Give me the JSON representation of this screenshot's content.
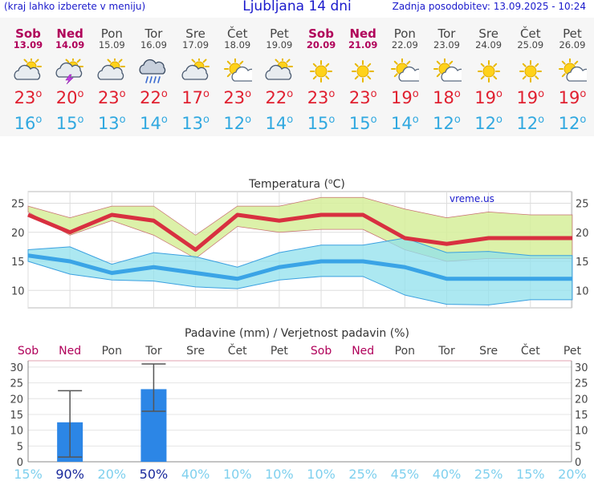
{
  "header": {
    "menu_note": "(kraj lahko izberete v meniju)",
    "title": "Ljubljana 14 dni",
    "updated": "Zadnja posodobitev: 13.09.2025 - 10:24"
  },
  "days": [
    {
      "name": "Sob",
      "date": "13.09",
      "weekend": true,
      "icon": "partly-cloudy-icon",
      "tmax": "23",
      "tmin": "16"
    },
    {
      "name": "Ned",
      "date": "14.09",
      "weekend": true,
      "icon": "thunderstorm-icon",
      "tmax": "20",
      "tmin": "15"
    },
    {
      "name": "Pon",
      "date": "15.09",
      "weekend": false,
      "icon": "partly-cloudy-icon",
      "tmax": "23",
      "tmin": "13"
    },
    {
      "name": "Tor",
      "date": "16.09",
      "weekend": false,
      "icon": "rain-cloud-icon",
      "tmax": "22",
      "tmin": "14"
    },
    {
      "name": "Sre",
      "date": "17.09",
      "weekend": false,
      "icon": "partly-cloudy-icon",
      "tmax": "17",
      "tmin": "13"
    },
    {
      "name": "Čet",
      "date": "18.09",
      "weekend": false,
      "icon": "mostly-sunny-icon",
      "tmax": "23",
      "tmin": "12"
    },
    {
      "name": "Pet",
      "date": "19.09",
      "weekend": false,
      "icon": "partly-cloudy-icon",
      "tmax": "22",
      "tmin": "14"
    },
    {
      "name": "Sob",
      "date": "20.09",
      "weekend": true,
      "icon": "sunny-icon",
      "tmax": "23",
      "tmin": "15"
    },
    {
      "name": "Ned",
      "date": "21.09",
      "weekend": true,
      "icon": "sunny-icon",
      "tmax": "23",
      "tmin": "15"
    },
    {
      "name": "Pon",
      "date": "22.09",
      "weekend": false,
      "icon": "mostly-sunny-icon",
      "tmax": "19",
      "tmin": "14"
    },
    {
      "name": "Tor",
      "date": "23.09",
      "weekend": false,
      "icon": "mostly-sunny-icon",
      "tmax": "18",
      "tmin": "12"
    },
    {
      "name": "Sre",
      "date": "24.09",
      "weekend": false,
      "icon": "sunny-icon",
      "tmax": "19",
      "tmin": "12"
    },
    {
      "name": "Čet",
      "date": "25.09",
      "weekend": false,
      "icon": "sunny-icon",
      "tmax": "19",
      "tmin": "12"
    },
    {
      "name": "Pet",
      "date": "26.09",
      "weekend": false,
      "icon": "mostly-sunny-icon",
      "tmax": "19",
      "tmin": "12"
    }
  ],
  "degree_symbol": "o",
  "colors": {
    "max": "#e02030",
    "min": "#30a8e0",
    "max_band": "#d6ee9a",
    "min_band": "#90e0ec",
    "bar": "#2c86e6",
    "prob_high": "#1a2a9c",
    "prob_low": "#7fd0ee",
    "title": "#1a1acc",
    "weekend": "#b0005a"
  },
  "chart_data": [
    {
      "type": "line",
      "title": "Temperatura (°C)",
      "title_parts": [
        "Temperatura (",
        "o",
        "C)"
      ],
      "watermark": "vreme.us",
      "categories": [
        "Sob",
        "Ned",
        "Pon",
        "Tor",
        "Sre",
        "Čet",
        "Pet",
        "Sob",
        "Ned",
        "Pon",
        "Tor",
        "Sre",
        "Čet",
        "Pet"
      ],
      "ylim": [
        7,
        27
      ],
      "yticks": [
        10,
        15,
        20,
        25
      ],
      "series": [
        {
          "name": "max",
          "values": [
            23,
            20,
            23,
            22,
            17,
            23,
            22,
            23,
            23,
            19,
            18,
            19,
            19,
            19
          ]
        },
        {
          "name": "min",
          "values": [
            16,
            15,
            13,
            14,
            13,
            12,
            14,
            15,
            15,
            14,
            12,
            12,
            12,
            12
          ]
        }
      ],
      "bands": [
        {
          "name": "max_range",
          "low": [
            23.5,
            19.5,
            22,
            19.5,
            15.5,
            21,
            20,
            20.5,
            20.5,
            17,
            15,
            15.5,
            15.5,
            15.5
          ],
          "high": [
            24.5,
            22.5,
            24.5,
            24.5,
            19.5,
            24.5,
            24.5,
            26,
            26,
            24,
            22.5,
            23.5,
            23,
            23
          ]
        },
        {
          "name": "min_range",
          "low": [
            15,
            12.8,
            11.8,
            11.6,
            10.6,
            10.3,
            11.8,
            12.4,
            12.4,
            9.2,
            7.6,
            7.5,
            8.4,
            8.4
          ],
          "high": [
            17,
            17.5,
            14.5,
            16.5,
            15.8,
            14,
            16.5,
            17.8,
            17.8,
            19,
            16.5,
            16.7,
            16,
            16
          ]
        }
      ]
    },
    {
      "type": "bar",
      "title": "Padavine (mm) / Verjetnost padavin (%)",
      "categories": [
        "Sob",
        "Ned",
        "Pon",
        "Tor",
        "Sre",
        "Čet",
        "Pet",
        "Sob",
        "Ned",
        "Pon",
        "Tor",
        "Sre",
        "Čet",
        "Pet"
      ],
      "weekend": [
        true,
        true,
        false,
        false,
        false,
        false,
        false,
        true,
        true,
        false,
        false,
        false,
        false,
        false
      ],
      "ylim": [
        0,
        32
      ],
      "yticks": [
        0,
        5,
        10,
        15,
        20,
        25,
        30
      ],
      "values": [
        0,
        12.5,
        0,
        23,
        0,
        0,
        0,
        0,
        0,
        0,
        0,
        0,
        0,
        0
      ],
      "error_low": [
        null,
        1.5,
        null,
        16,
        null,
        null,
        null,
        null,
        null,
        null,
        null,
        null,
        null,
        null
      ],
      "error_high": [
        null,
        22.5,
        null,
        31,
        null,
        null,
        null,
        null,
        null,
        null,
        null,
        null,
        null,
        null
      ],
      "probability": [
        "15%",
        "90%",
        "20%",
        "50%",
        "40%",
        "10%",
        "10%",
        "10%",
        "25%",
        "45%",
        "40%",
        "25%",
        "15%",
        "20%"
      ],
      "probability_values": [
        15,
        90,
        20,
        50,
        40,
        10,
        10,
        10,
        25,
        45,
        40,
        25,
        15,
        20
      ]
    }
  ]
}
